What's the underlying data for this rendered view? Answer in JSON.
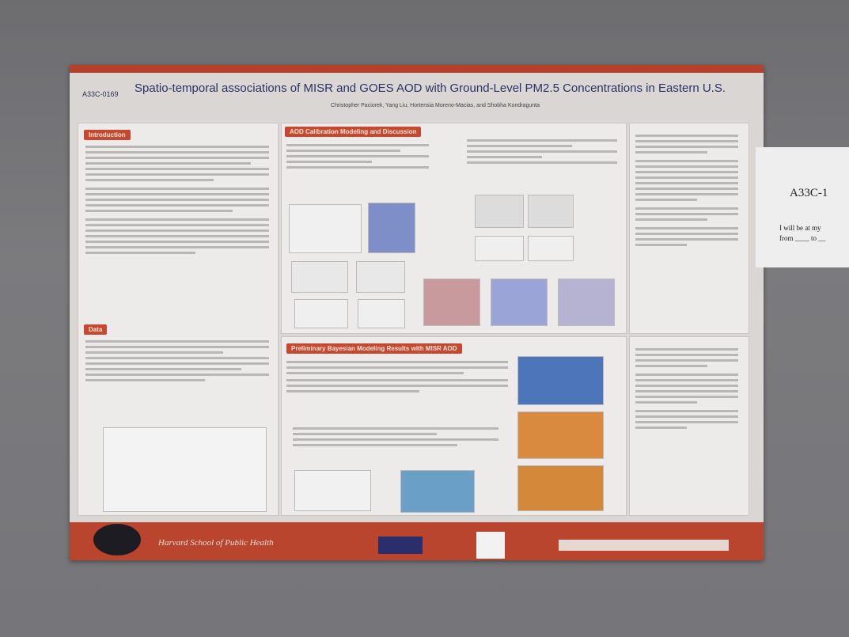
{
  "poster": {
    "code": "A33C-0169",
    "title": "Spatio-temporal associations of MISR and GOES AOD with Ground-Level PM2.5 Concentrations in Eastern U.S.",
    "authors": "Christopher Paciorek, Yang Liu, Hortensia Moreno-Macias, and Shobha Kondragunta",
    "sections": [
      "Introduction",
      "Data",
      "AOD Calibration Modeling and Discussion",
      "Preliminary Bayesian Modeling Results with MISR AOD"
    ],
    "footer": "Harvard School of Public Health"
  },
  "note_card": {
    "code": "A33C-1",
    "lines": [
      "I will be at my",
      "from ____ to __"
    ]
  }
}
